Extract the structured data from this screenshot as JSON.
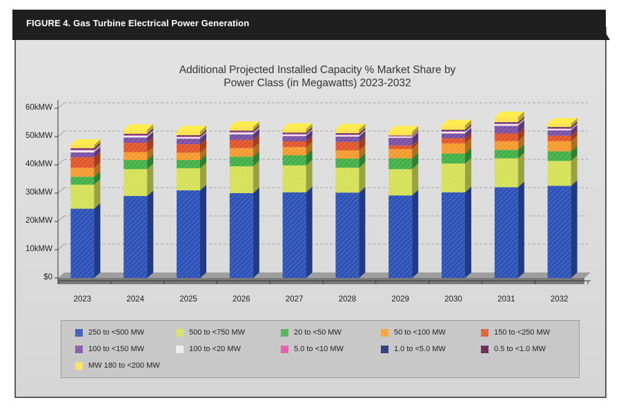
{
  "header": {
    "figure_title": "FIGURE 4. Gas Turbine Electrical Power Generation"
  },
  "chart_data": {
    "type": "bar",
    "stacked": true,
    "title": "Additional Projected Installed Capacity % Market Share by Power Class (in Megawatts) 2023-2032",
    "title_lines": [
      "Additional Projected Installed Capacity % Market Share by",
      "Power Class (in Megawatts) 2023-2032"
    ],
    "xlabel": "",
    "ylabel": "",
    "ylim": [
      0,
      60000
    ],
    "y_ticks": [
      {
        "value": 0,
        "label": "$0"
      },
      {
        "value": 10000,
        "label": "10kMW"
      },
      {
        "value": 20000,
        "label": "20kMW"
      },
      {
        "value": 30000,
        "label": "30kMW"
      },
      {
        "value": 40000,
        "label": "40kMW"
      },
      {
        "value": 50000,
        "label": "50kMW"
      },
      {
        "value": 60000,
        "label": "60kMW"
      }
    ],
    "grid": true,
    "legend_position": "bottom",
    "categories": [
      "2023",
      "2024",
      "2025",
      "2026",
      "2027",
      "2028",
      "2029",
      "2030",
      "2031",
      "2032"
    ],
    "series": [
      {
        "name": "250 to <500 MW",
        "color": "#2c52b8",
        "values": [
          24500,
          29000,
          31000,
          30000,
          30300,
          30200,
          29200,
          30300,
          32100,
          32600
        ]
      },
      {
        "name": "500 to <750 MW",
        "color": "#d4e157",
        "values": [
          8500,
          9500,
          7800,
          9500,
          9500,
          8800,
          9300,
          10200,
          10200,
          8800
        ]
      },
      {
        "name": "20 to <50 MW",
        "color": "#43b047",
        "values": [
          2800,
          3200,
          2900,
          3400,
          3600,
          3200,
          3800,
          3500,
          3000,
          3400
        ]
      },
      {
        "name": "50 to <100 MW",
        "color": "#f59a2f",
        "values": [
          3200,
          2800,
          2600,
          3000,
          2900,
          2900,
          3300,
          3600,
          3100,
          3600
        ]
      },
      {
        "name": "150 to <250 MW",
        "color": "#e0562a",
        "values": [
          3700,
          3300,
          3000,
          2900,
          2000,
          3000,
          1300,
          1800,
          2700,
          1900
        ]
      },
      {
        "name": "100 to <150 MW",
        "color": "#7b4fa3",
        "values": [
          1700,
          1900,
          2000,
          2000,
          1900,
          1900,
          2700,
          1700,
          2700,
          1900
        ]
      },
      {
        "name": "100 to <20 MW",
        "color": "#eeeeee",
        "values": [
          700,
          600,
          500,
          600,
          500,
          500,
          400,
          600,
          600,
          500
        ]
      },
      {
        "name": "5.0 to <10 MW",
        "color": "#e34fa6",
        "values": [
          400,
          300,
          300,
          300,
          300,
          300,
          200,
          300,
          300,
          300
        ]
      },
      {
        "name": "1.0 to <5.0 MW",
        "color": "#1b2c6e",
        "values": [
          200,
          200,
          200,
          200,
          200,
          200,
          100,
          200,
          200,
          200
        ]
      },
      {
        "name": "0.5 to <1.0 MW",
        "color": "#5c1a48",
        "values": [
          200,
          200,
          200,
          200,
          200,
          200,
          100,
          200,
          200,
          200
        ]
      },
      {
        "name": "MW 180 to <200 MW",
        "color": "#ffe14a",
        "values": [
          1200,
          1400,
          1400,
          1300,
          1300,
          1400,
          1400,
          1600,
          1800,
          1200
        ]
      }
    ]
  }
}
